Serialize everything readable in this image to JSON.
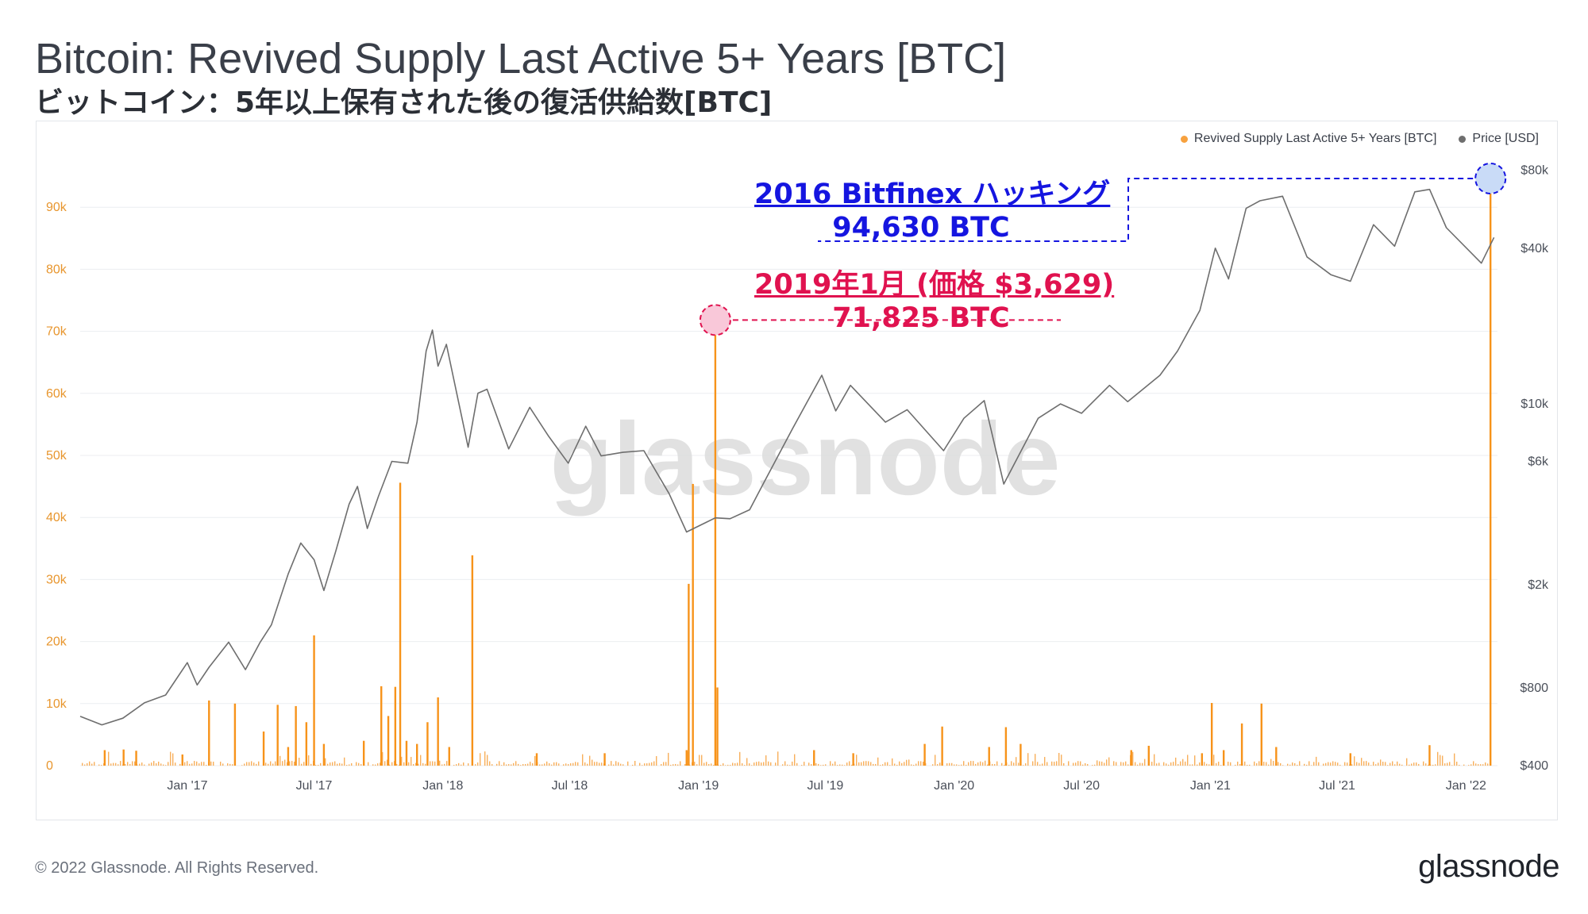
{
  "title": "Bitcoin: Revived Supply Last Active 5+ Years [BTC]",
  "subtitle": "ビットコイン：5年以上保有された後の復活供給数[BTC]",
  "legend": {
    "supply_label": "Revived Supply Last Active 5+ Years [BTC]",
    "price_label": "Price [USD]"
  },
  "annotations": {
    "hack_title": "2016 Bitfinex ハッキング",
    "hack_value": "94,630 BTC",
    "jan2019_title": "2019年1月 (価格 $3,629)",
    "jan2019_value": "71,825 BTC"
  },
  "watermark": "glassnode",
  "footer": {
    "copyright": "© 2022 Glassnode. All Rights Reserved.",
    "brand": "glassnode"
  },
  "colors": {
    "supply": "#f7931a",
    "price": "#6e6e6e",
    "hack": "#1515e0",
    "jan2019": "#e0124f"
  },
  "chart_data": {
    "type": "bar",
    "x_tick_labels": [
      "Jan '17",
      "Jul '17",
      "Jan '18",
      "Jul '18",
      "Jan '19",
      "Jul '19",
      "Jan '20",
      "Jul '20",
      "Jan '21",
      "Jul '21",
      "Jan '22"
    ],
    "x_tick_dates": [
      "2017-01-01",
      "2017-07-01",
      "2018-01-01",
      "2018-07-01",
      "2019-01-01",
      "2019-07-01",
      "2020-01-01",
      "2020-07-01",
      "2021-01-01",
      "2021-07-01",
      "2022-01-01"
    ],
    "x_range": [
      "2016-08-01",
      "2022-02-15"
    ],
    "left_axis": {
      "tick_labels": [
        "0",
        "10k",
        "20k",
        "30k",
        "40k",
        "50k",
        "60k",
        "70k",
        "80k",
        "90k"
      ],
      "ticks": [
        0,
        10000,
        20000,
        30000,
        40000,
        50000,
        60000,
        70000,
        80000,
        90000
      ],
      "ylim": [
        0,
        100000
      ]
    },
    "right_axis": {
      "scale": "log",
      "tick_labels": [
        "$400",
        "$800",
        "$2k",
        "$6k",
        "$10k",
        "$40k",
        "$80k"
      ],
      "ticks": [
        400,
        800,
        2000,
        6000,
        10000,
        40000,
        80000
      ],
      "ylim": [
        400,
        100000
      ]
    },
    "grid": "horizontal",
    "legend_position": "top-right",
    "series": [
      {
        "name": "Revived Supply Last Active 5+ Years [BTC]",
        "axis": "left",
        "type": "bar",
        "points": [
          [
            "2016-09-05",
            2500
          ],
          [
            "2016-10-02",
            2600
          ],
          [
            "2016-10-20",
            2400
          ],
          [
            "2016-12-25",
            1800
          ],
          [
            "2017-02-01",
            10500
          ],
          [
            "2017-03-10",
            10000
          ],
          [
            "2017-04-20",
            5500
          ],
          [
            "2017-05-10",
            9800
          ],
          [
            "2017-05-25",
            3000
          ],
          [
            "2017-06-05",
            9600
          ],
          [
            "2017-06-20",
            7000
          ],
          [
            "2017-07-01",
            21000
          ],
          [
            "2017-07-15",
            3500
          ],
          [
            "2017-09-10",
            4000
          ],
          [
            "2017-10-05",
            12800
          ],
          [
            "2017-10-15",
            8000
          ],
          [
            "2017-10-25",
            12700
          ],
          [
            "2017-11-01",
            45600
          ],
          [
            "2017-11-10",
            4000
          ],
          [
            "2017-11-25",
            3500
          ],
          [
            "2017-12-10",
            7000
          ],
          [
            "2017-12-25",
            11000
          ],
          [
            "2018-01-10",
            3000
          ],
          [
            "2018-02-12",
            33900
          ],
          [
            "2018-05-15",
            2000
          ],
          [
            "2018-08-20",
            2000
          ],
          [
            "2018-12-15",
            2500
          ],
          [
            "2018-12-18",
            29300
          ],
          [
            "2018-12-24",
            45400
          ],
          [
            "2019-01-25",
            71825
          ],
          [
            "2019-01-28",
            12600
          ],
          [
            "2019-06-15",
            2500
          ],
          [
            "2019-08-10",
            2000
          ],
          [
            "2019-11-20",
            3500
          ],
          [
            "2019-12-15",
            6300
          ],
          [
            "2020-02-20",
            3000
          ],
          [
            "2020-03-15",
            6200
          ],
          [
            "2020-04-05",
            3500
          ],
          [
            "2020-09-10",
            2500
          ],
          [
            "2020-10-05",
            3200
          ],
          [
            "2020-12-20",
            2000
          ],
          [
            "2021-01-03",
            10100
          ],
          [
            "2021-01-20",
            2500
          ],
          [
            "2021-02-15",
            6800
          ],
          [
            "2021-03-15",
            10000
          ],
          [
            "2021-04-05",
            3000
          ],
          [
            "2021-07-20",
            2000
          ],
          [
            "2021-11-10",
            3300
          ],
          [
            "2022-02-05",
            94630
          ]
        ]
      },
      {
        "name": "Price [USD]",
        "axis": "right",
        "type": "line",
        "points": [
          [
            "2016-08-01",
            620
          ],
          [
            "2016-09-01",
            575
          ],
          [
            "2016-10-01",
            610
          ],
          [
            "2016-11-01",
            700
          ],
          [
            "2016-12-01",
            750
          ],
          [
            "2017-01-01",
            1000
          ],
          [
            "2017-01-15",
            820
          ],
          [
            "2017-02-01",
            960
          ],
          [
            "2017-03-01",
            1200
          ],
          [
            "2017-03-25",
            940
          ],
          [
            "2017-04-15",
            1200
          ],
          [
            "2017-05-01",
            1400
          ],
          [
            "2017-05-25",
            2200
          ],
          [
            "2017-06-12",
            2900
          ],
          [
            "2017-07-01",
            2500
          ],
          [
            "2017-07-15",
            1900
          ],
          [
            "2017-08-01",
            2700
          ],
          [
            "2017-08-20",
            4100
          ],
          [
            "2017-09-01",
            4800
          ],
          [
            "2017-09-15",
            3300
          ],
          [
            "2017-10-01",
            4400
          ],
          [
            "2017-10-20",
            6000
          ],
          [
            "2017-11-12",
            5900
          ],
          [
            "2017-11-25",
            8500
          ],
          [
            "2017-12-08",
            16000
          ],
          [
            "2017-12-17",
            19300
          ],
          [
            "2017-12-25",
            14000
          ],
          [
            "2018-01-06",
            17000
          ],
          [
            "2018-02-06",
            6800
          ],
          [
            "2018-02-20",
            11000
          ],
          [
            "2018-03-05",
            11400
          ],
          [
            "2018-04-05",
            6700
          ],
          [
            "2018-05-05",
            9700
          ],
          [
            "2018-06-01",
            7500
          ],
          [
            "2018-06-29",
            5900
          ],
          [
            "2018-07-24",
            8200
          ],
          [
            "2018-08-15",
            6300
          ],
          [
            "2018-09-15",
            6500
          ],
          [
            "2018-10-15",
            6600
          ],
          [
            "2018-11-20",
            4500
          ],
          [
            "2018-12-15",
            3200
          ],
          [
            "2019-01-25",
            3629
          ],
          [
            "2019-02-15",
            3600
          ],
          [
            "2019-03-15",
            3900
          ],
          [
            "2019-04-05",
            5000
          ],
          [
            "2019-05-15",
            8000
          ],
          [
            "2019-06-26",
            12900
          ],
          [
            "2019-07-16",
            9400
          ],
          [
            "2019-08-06",
            11800
          ],
          [
            "2019-09-25",
            8500
          ],
          [
            "2019-10-26",
            9500
          ],
          [
            "2019-12-17",
            6600
          ],
          [
            "2020-01-15",
            8800
          ],
          [
            "2020-02-13",
            10300
          ],
          [
            "2020-03-12",
            4900
          ],
          [
            "2020-04-30",
            8800
          ],
          [
            "2020-06-01",
            10000
          ],
          [
            "2020-07-01",
            9200
          ],
          [
            "2020-08-10",
            11800
          ],
          [
            "2020-09-05",
            10200
          ],
          [
            "2020-10-21",
            12900
          ],
          [
            "2020-11-15",
            16000
          ],
          [
            "2020-12-17",
            23000
          ],
          [
            "2021-01-08",
            40000
          ],
          [
            "2021-01-27",
            30400
          ],
          [
            "2021-02-21",
            57000
          ],
          [
            "2021-03-13",
            61000
          ],
          [
            "2021-04-14",
            63500
          ],
          [
            "2021-05-19",
            37000
          ],
          [
            "2021-06-22",
            31600
          ],
          [
            "2021-07-20",
            29800
          ],
          [
            "2021-08-22",
            49300
          ],
          [
            "2021-09-21",
            40700
          ],
          [
            "2021-10-20",
            66000
          ],
          [
            "2021-11-10",
            67500
          ],
          [
            "2021-12-04",
            48000
          ],
          [
            "2022-01-23",
            35000
          ],
          [
            "2022-02-10",
            44000
          ]
        ]
      }
    ]
  }
}
